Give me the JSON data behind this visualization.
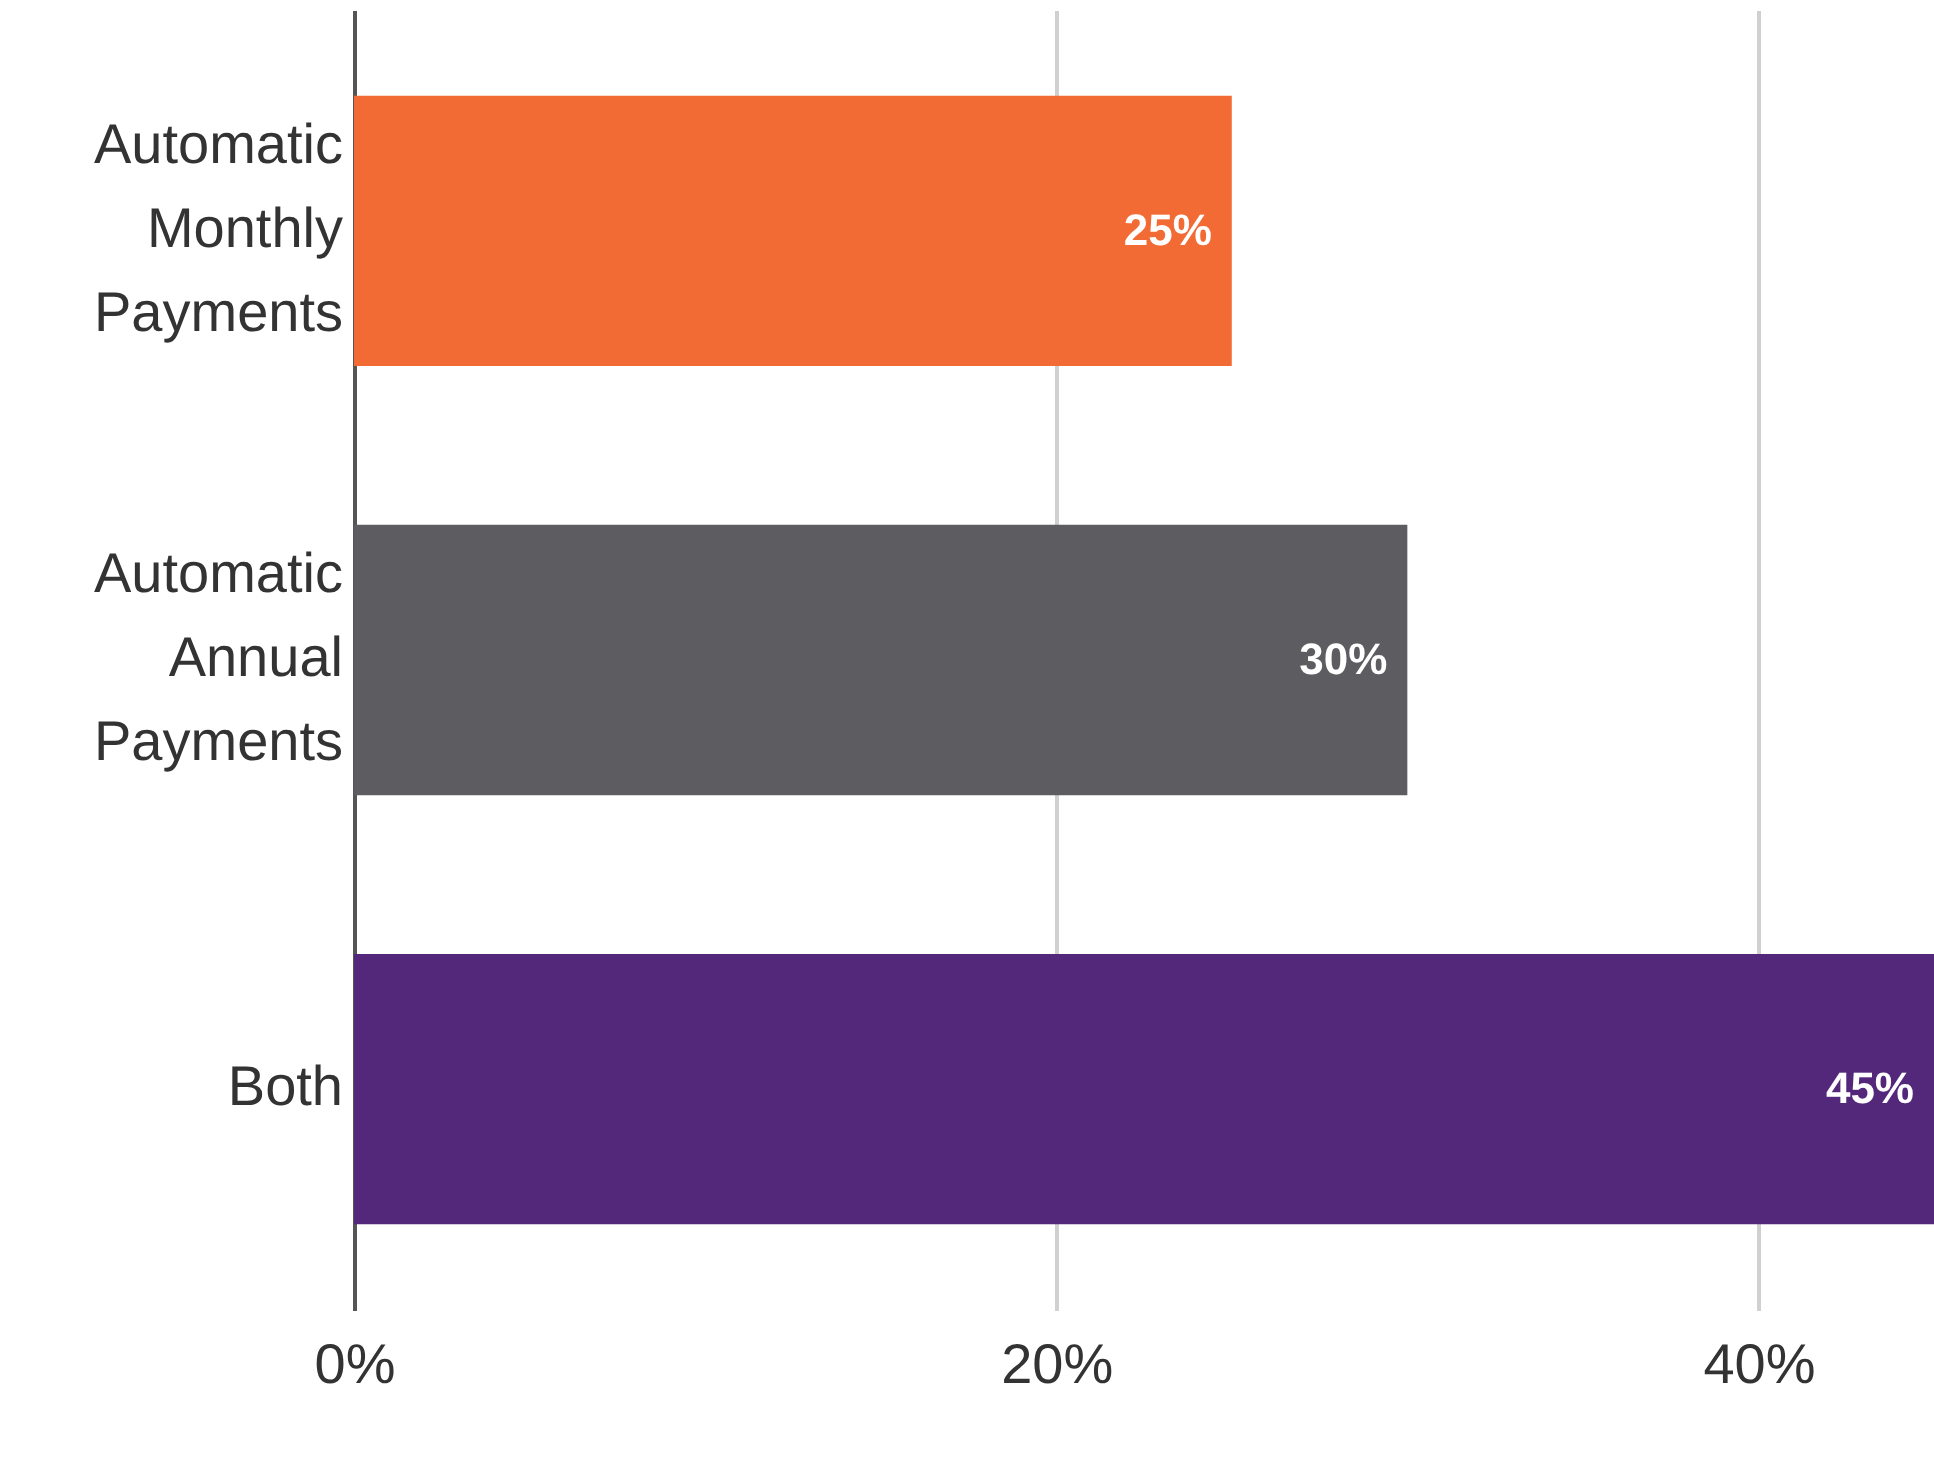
{
  "chart_data": {
    "type": "bar",
    "orientation": "horizontal",
    "categories": [
      "Automatic Monthly Payments",
      "Automatic Annual Payments",
      "Both"
    ],
    "values": [
      25,
      30,
      45
    ],
    "colors": [
      "#f26b35",
      "#5c5c61",
      "#53287a"
    ],
    "value_labels": [
      "25%",
      "30%",
      "45%"
    ],
    "xlim": [
      0,
      45
    ],
    "xticks": [
      {
        "value": 0,
        "label": "0%"
      },
      {
        "value": 20,
        "label": "20%"
      },
      {
        "value": 40,
        "label": "40%"
      }
    ],
    "grid": "x"
  }
}
